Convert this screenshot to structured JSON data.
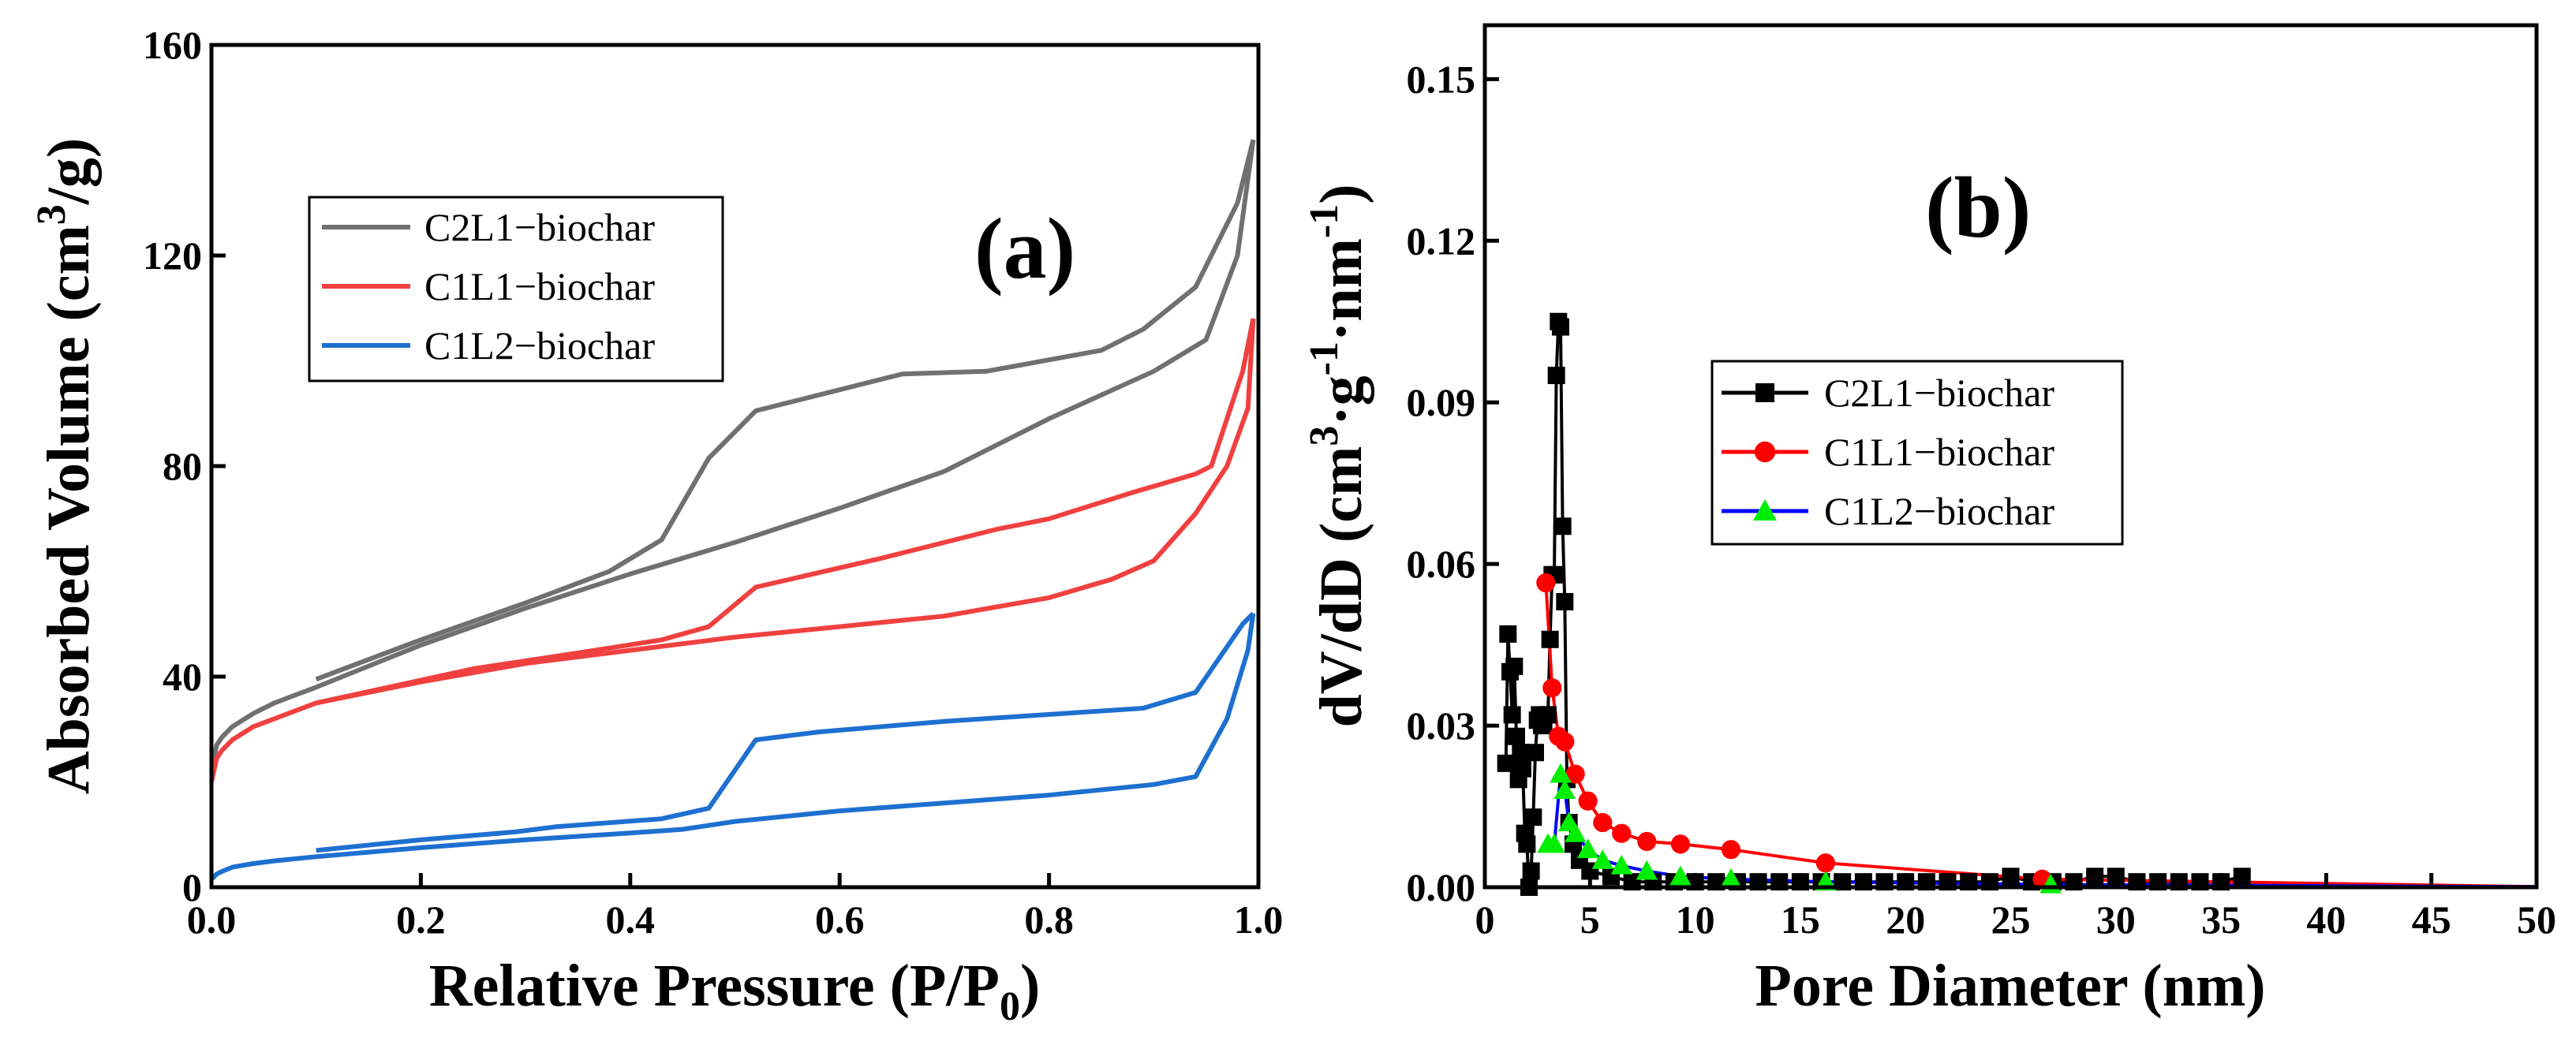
{
  "chart_data": [
    {
      "type": "line",
      "panel_label": "(a)",
      "xlabel": "Relative Pressure (P/P0)",
      "xlabel_main": "Relative Pressure (P/P",
      "xlabel_sub": "0",
      "xlabel_close": ")",
      "ylabel": "Absorbed Volume (cm3/g)",
      "ylabel_main": "Absorbed Volume (cm",
      "ylabel_sup": "3",
      "ylabel_tail": "/g)",
      "xlim": [
        0,
        1
      ],
      "ylim": [
        0,
        160
      ],
      "xticks": [
        0.0,
        0.2,
        0.4,
        0.6,
        0.8,
        1.0
      ],
      "xtick_labels": [
        "0.0",
        "0.2",
        "0.4",
        "0.6",
        "0.8",
        "1.0"
      ],
      "yticks": [
        0,
        40,
        80,
        120,
        160
      ],
      "ytick_labels": [
        "0",
        "40",
        "80",
        "120",
        "160"
      ],
      "legend_position": "upper-left",
      "series": [
        {
          "name": "C2L1−biochar",
          "color": "#707070",
          "adsorption": {
            "x": [
              0.0,
              0.005,
              0.01,
              0.02,
              0.04,
              0.06,
              0.1,
              0.2,
              0.3,
              0.4,
              0.5,
              0.6,
              0.7,
              0.8,
              0.9,
              0.95,
              0.98,
              0.995
            ],
            "y": [
              22,
              27,
              28.5,
              30.5,
              33,
              35,
              38,
              46,
              53,
              59.5,
              65.5,
              72,
              79,
              89,
              98,
              104,
              120,
              142
            ]
          },
          "desorption": {
            "x": [
              0.995,
              0.98,
              0.94,
              0.89,
              0.85,
              0.74,
              0.66,
              0.52,
              0.475,
              0.43,
              0.38,
              0.3,
              0.2,
              0.1
            ],
            "y": [
              142,
              130,
              114,
              106,
              102,
              98,
              97.5,
              90.5,
              81.5,
              66,
              60,
              54,
              47,
              39.5
            ]
          }
        },
        {
          "name": "C1L1−biochar",
          "color": "#f04040",
          "adsorption": {
            "x": [
              0.0,
              0.005,
              0.01,
              0.02,
              0.04,
              0.06,
              0.1,
              0.2,
              0.3,
              0.4,
              0.5,
              0.6,
              0.7,
              0.8,
              0.86,
              0.9,
              0.94,
              0.97,
              0.99,
              0.995
            ],
            "y": [
              20,
              24.5,
              26,
              28,
              30.5,
              32,
              35,
              39,
              42.5,
              45,
              47.5,
              49.5,
              51.5,
              55,
              58.5,
              62,
              71,
              80,
              91,
              108
            ]
          },
          "desorption": {
            "x": [
              0.995,
              0.985,
              0.955,
              0.94,
              0.88,
              0.8,
              0.75,
              0.64,
              0.52,
              0.475,
              0.43,
              0.35,
              0.25,
              0.1
            ],
            "y": [
              108,
              98,
              80,
              78.5,
              75,
              70,
              68,
              62.5,
              57,
              49.5,
              47,
              44.5,
              41.5,
              35
            ]
          }
        },
        {
          "name": "C1L2−biochar",
          "color": "#1e70d0",
          "adsorption": {
            "x": [
              0.0,
              0.005,
              0.01,
              0.02,
              0.04,
              0.06,
              0.1,
              0.2,
              0.3,
              0.4,
              0.45,
              0.5,
              0.6,
              0.7,
              0.8,
              0.9,
              0.94,
              0.97,
              0.99,
              0.995
            ],
            "y": [
              1.5,
              2.5,
              3,
              3.8,
              4.5,
              5,
              5.8,
              7.5,
              9,
              10.3,
              11,
              12.5,
              14.5,
              16,
              17.5,
              19.5,
              21,
              32,
              45,
              52
            ]
          },
          "desorption": {
            "x": [
              0.995,
              0.985,
              0.94,
              0.89,
              0.7,
              0.58,
              0.52,
              0.475,
              0.43,
              0.33,
              0.29,
              0.2,
              0.1
            ],
            "y": [
              52,
              50,
              37,
              34,
              31.5,
              29.5,
              28,
              15,
              13,
              11.5,
              10.5,
              9,
              7
            ]
          }
        }
      ]
    },
    {
      "type": "line",
      "panel_label": "(b)",
      "xlabel": "Pore Diameter (nm)",
      "ylabel": "dV/dD (cm3·g−1·nm−1)",
      "ylabel_p1": "dV/dD (cm",
      "ylabel_s1": "3",
      "ylabel_p2": "·g",
      "ylabel_s2": "-1",
      "ylabel_p3": "·nm",
      "ylabel_s3": "-1",
      "ylabel_p4": ")",
      "xlim": [
        0,
        50
      ],
      "ylim": [
        0,
        0.16
      ],
      "xticks": [
        0,
        5,
        10,
        15,
        20,
        25,
        30,
        35,
        40,
        45,
        50
      ],
      "xtick_labels": [
        "0",
        "5",
        "10",
        "15",
        "20",
        "25",
        "30",
        "35",
        "40",
        "45",
        "50"
      ],
      "yticks": [
        0.0,
        0.03,
        0.06,
        0.09,
        0.12,
        0.15
      ],
      "ytick_labels": [
        "0.00",
        "0.03",
        "0.06",
        "0.09",
        "0.12",
        "0.15"
      ],
      "legend_position": "center",
      "series": [
        {
          "name": "C2L1−biochar",
          "color": "#000000",
          "marker": "square",
          "x": [
            1.0,
            1.1,
            1.2,
            1.3,
            1.4,
            1.5,
            1.6,
            1.7,
            1.8,
            1.9,
            2.0,
            2.1,
            2.2,
            2.3,
            2.4,
            2.5,
            2.6,
            2.7,
            2.8,
            2.9,
            3.0,
            3.1,
            3.2,
            3.3,
            3.4,
            3.5,
            3.6,
            3.7,
            3.8,
            3.9,
            4.0,
            4.2,
            4.5,
            5.0,
            6.0,
            7.0,
            8.0,
            9.0,
            10.0,
            11.0,
            12.0,
            13.0,
            14.0,
            15.0,
            16.0,
            17.0,
            18.0,
            19.0,
            20.0,
            21.0,
            22.0,
            23.0,
            24.0,
            25.0,
            26.0,
            27.0,
            28.0,
            29.0,
            30.0,
            31.0,
            32.0,
            33.0,
            34.0,
            35.0,
            36.0
          ],
          "y": [
            0.023,
            0.047,
            0.04,
            0.032,
            0.041,
            0.028,
            0.02,
            0.025,
            0.022,
            0.01,
            0.008,
            0.0,
            0.003,
            0.013,
            0.025,
            0.031,
            0.032,
            0.03,
            0.03,
            0.032,
            0.032,
            0.046,
            0.058,
            0.058,
            0.095,
            0.105,
            0.104,
            0.067,
            0.053,
            0.02,
            0.012,
            0.008,
            0.005,
            0.003,
            0.002,
            0.001,
            0.001,
            0.001,
            0.001,
            0.001,
            0.001,
            0.001,
            0.001,
            0.001,
            0.001,
            0.001,
            0.001,
            0.001,
            0.001,
            0.001,
            0.001,
            0.001,
            0.001,
            0.002,
            0.001,
            0.001,
            0.001,
            0.002,
            0.002,
            0.001,
            0.001,
            0.001,
            0.001,
            0.001,
            0.002
          ]
        },
        {
          "name": "C1L1−biochar",
          "color": "#ff0000",
          "marker": "circle",
          "x": [
            2.9,
            3.2,
            3.5,
            3.8,
            4.3,
            4.9,
            5.6,
            6.5,
            7.7,
            9.3,
            11.7,
            16.2,
            26.5,
            50.0
          ],
          "y": [
            0.0565,
            0.037,
            0.028,
            0.027,
            0.021,
            0.016,
            0.012,
            0.01,
            0.0085,
            0.008,
            0.007,
            0.0045,
            0.0015,
            0.0001
          ]
        },
        {
          "name": "C1L2−biochar",
          "color": "#0000ff",
          "marker": "triangle",
          "marker_color": "#00ee00",
          "x": [
            3.0,
            3.3,
            3.6,
            3.8,
            4.0,
            4.3,
            4.9,
            5.6,
            6.5,
            7.7,
            9.3,
            11.7,
            16.2,
            26.9,
            50.0
          ],
          "y": [
            0.008,
            0.008,
            0.021,
            0.018,
            0.012,
            0.01,
            0.007,
            0.005,
            0.004,
            0.003,
            0.002,
            0.0015,
            0.001,
            0.0005,
            0.0001
          ]
        }
      ]
    }
  ]
}
